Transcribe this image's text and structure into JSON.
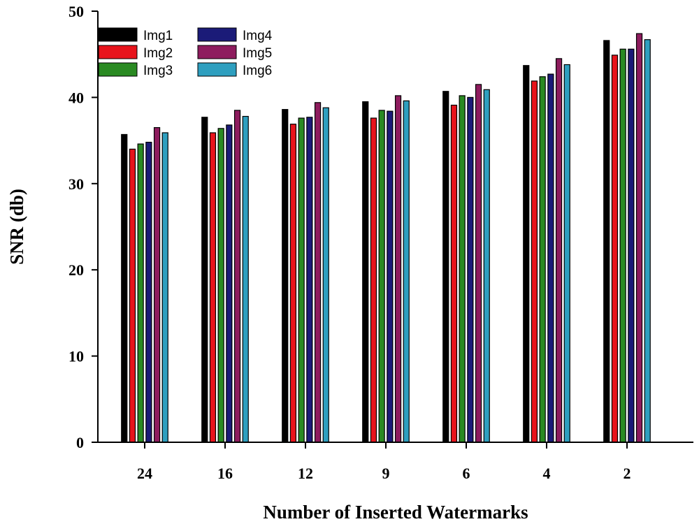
{
  "chart_data": {
    "type": "bar",
    "title": "",
    "xlabel": "Number of Inserted Watermarks",
    "ylabel": "SNR (db)",
    "ylim": [
      0,
      50
    ],
    "yticks": [
      "0",
      "10",
      "20",
      "30",
      "40",
      "50"
    ],
    "categories": [
      "24",
      "16",
      "12",
      "9",
      "6",
      "4",
      "2"
    ],
    "legend_position": "top-left",
    "grid": false,
    "series": [
      {
        "name": "Img1",
        "color": "#000000",
        "values": [
          35.7,
          37.7,
          38.6,
          39.5,
          40.7,
          43.7,
          46.6
        ]
      },
      {
        "name": "Img2",
        "color": "#e8141c",
        "values": [
          34.0,
          35.9,
          36.9,
          37.6,
          39.1,
          41.9,
          44.9
        ]
      },
      {
        "name": "Img3",
        "color": "#2a8a22",
        "values": [
          34.6,
          36.4,
          37.6,
          38.5,
          40.2,
          42.4,
          45.6
        ]
      },
      {
        "name": "Img4",
        "color": "#1b1b78",
        "values": [
          34.8,
          36.8,
          37.7,
          38.4,
          40.0,
          42.7,
          45.6
        ]
      },
      {
        "name": "Img5",
        "color": "#8e1c5e",
        "values": [
          36.5,
          38.5,
          39.4,
          40.2,
          41.5,
          44.5,
          47.4
        ]
      },
      {
        "name": "Img6",
        "color": "#2e9fbf",
        "values": [
          35.9,
          37.8,
          38.8,
          39.6,
          40.9,
          43.8,
          46.7
        ]
      }
    ]
  }
}
